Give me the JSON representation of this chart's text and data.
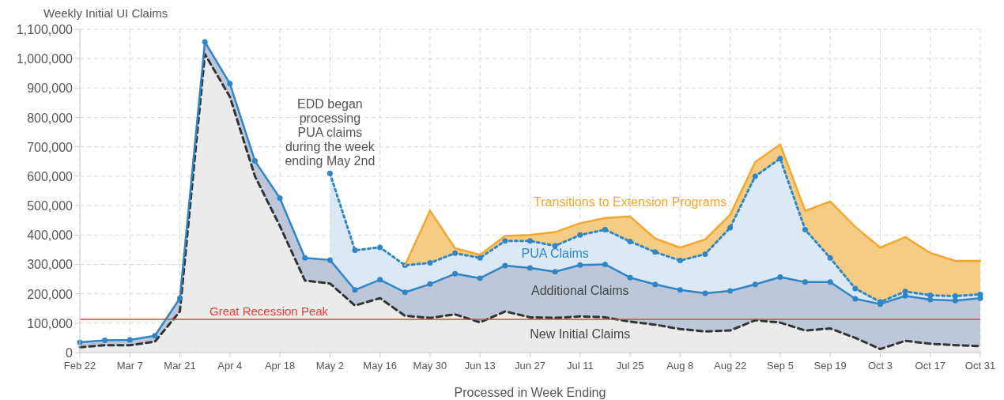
{
  "chart_data": {
    "type": "area",
    "stacked": true,
    "xlabel": "Processed in Week Ending",
    "ylabel": "Weekly Initial UI Claims",
    "x": [
      "--02-22",
      "--02-29",
      "--03-07",
      "--03-14",
      "--03-21",
      "--03-28",
      "--04-04",
      "--04-11",
      "--04-18",
      "--04-25",
      "--05-02",
      "--05-09",
      "--05-16",
      "--05-23",
      "--05-30",
      "--06-06",
      "--06-13",
      "--06-20",
      "--06-27",
      "--07-04",
      "--07-11",
      "--07-18",
      "--07-25",
      "--08-01",
      "--08-08",
      "--08-15",
      "--08-22",
      "--08-29",
      "--09-05",
      "--09-12",
      "--09-19",
      "--09-26",
      "--10-03",
      "--10-10",
      "--10-17",
      "--10-24",
      "--10-31"
    ],
    "series": [
      {
        "name": "New Initial Claims",
        "color": "#333333",
        "line_style": "dashed",
        "marker": "none",
        "values": [
          18000,
          25000,
          25000,
          37000,
          140000,
          1015000,
          870000,
          600000,
          430000,
          245000,
          235000,
          160000,
          185000,
          125000,
          118000,
          130000,
          103000,
          140000,
          120000,
          118000,
          123000,
          120000,
          105000,
          95000,
          80000,
          72000,
          75000,
          110000,
          102000,
          75000,
          82000,
          50000,
          12000,
          40000,
          30000,
          25000,
          22000
        ]
      },
      {
        "name": "Additional Claims",
        "color": "#2f86c6",
        "line_style": "solid",
        "marker": "circle",
        "values": [
          17000,
          17000,
          18000,
          20000,
          45000,
          42000,
          45000,
          52000,
          95000,
          77000,
          80000,
          53000,
          63000,
          80000,
          115000,
          138000,
          150000,
          156000,
          168000,
          157000,
          175000,
          180000,
          150000,
          137000,
          133000,
          130000,
          135000,
          122000,
          155000,
          165000,
          158000,
          133000,
          153000,
          153000,
          150000,
          152000,
          163000
        ]
      },
      {
        "name": "PUA Claims",
        "color": "#2f86c6",
        "line_style": "dotted",
        "marker": "circle",
        "values": [
          null,
          null,
          null,
          null,
          null,
          null,
          null,
          null,
          null,
          null,
          295000,
          135000,
          110000,
          92000,
          72000,
          70000,
          69000,
          84000,
          92000,
          88000,
          102000,
          118000,
          123000,
          110000,
          100000,
          133000,
          215000,
          368000,
          403000,
          178000,
          82000,
          35000,
          7000,
          15000,
          15000,
          15000,
          13000
        ]
      },
      {
        "name": "Transitions to Extension Programs",
        "color": "#f0a830",
        "line_style": "solid",
        "marker": "none",
        "values": [
          null,
          null,
          null,
          null,
          null,
          null,
          null,
          null,
          null,
          null,
          null,
          null,
          null,
          0,
          178000,
          17000,
          11000,
          17000,
          20000,
          47000,
          40000,
          40000,
          85000,
          46000,
          44000,
          50000,
          44000,
          48000,
          48000,
          64000,
          192000,
          210000,
          185000,
          185000,
          144000,
          120000,
          114000
        ]
      }
    ],
    "xlim": [
      "--02-22",
      "--10-31"
    ],
    "xticks": [
      {
        "value": "--02-22",
        "label": "Feb 22"
      },
      {
        "value": "--03-07",
        "label": "Mar 7"
      },
      {
        "value": "--03-21",
        "label": "Mar 21"
      },
      {
        "value": "--04-04",
        "label": "Apr 4"
      },
      {
        "value": "--04-18",
        "label": "Apr 18"
      },
      {
        "value": "--05-02",
        "label": "May 2"
      },
      {
        "value": "--05-16",
        "label": "May 16"
      },
      {
        "value": "--05-30",
        "label": "May 30"
      },
      {
        "value": "--06-13",
        "label": "Jun 13"
      },
      {
        "value": "--06-27",
        "label": "Jun 27"
      },
      {
        "value": "--07-11",
        "label": "Jul 11"
      },
      {
        "value": "--07-25",
        "label": "Jul 25"
      },
      {
        "value": "--08-08",
        "label": "Aug 8"
      },
      {
        "value": "--08-22",
        "label": "Aug 22"
      },
      {
        "value": "--09-05",
        "label": "Sep 5"
      },
      {
        "value": "--09-19",
        "label": "Sep 19"
      },
      {
        "value": "--10-03",
        "label": "Oct 3"
      },
      {
        "value": "--10-17",
        "label": "Oct 17"
      },
      {
        "value": "--10-31",
        "label": "Oct 31"
      }
    ],
    "ylim": [
      0,
      1100000
    ],
    "yticks": [
      0,
      {
        "value": 100000,
        "label": "100,000"
      },
      {
        "value": 200000,
        "label": "200,000"
      },
      {
        "value": 300000,
        "label": "300,000"
      },
      {
        "value": 400000,
        "label": "400,000"
      },
      {
        "value": 500000,
        "label": "500,000"
      },
      {
        "value": 600000,
        "label": "600,000"
      },
      {
        "value": 700000,
        "label": "700,000"
      },
      {
        "value": 800000,
        "label": "800,000"
      },
      {
        "value": 900000,
        "label": "900,000"
      },
      {
        "value": 1000000,
        "label": "1,000,000"
      },
      {
        "value": 1100000,
        "label": "1,100,000"
      }
    ],
    "grid": true,
    "ref_lines": [
      {
        "axis": "y",
        "value": 113000,
        "label": "Great Recession Peak",
        "color": "#e0403c"
      }
    ],
    "annotations": [
      {
        "text": "EDD began\nprocessing\nPUA claims\nduring the week\nending May 2nd",
        "x": "--05-02",
        "y": 610000
      }
    ]
  }
}
